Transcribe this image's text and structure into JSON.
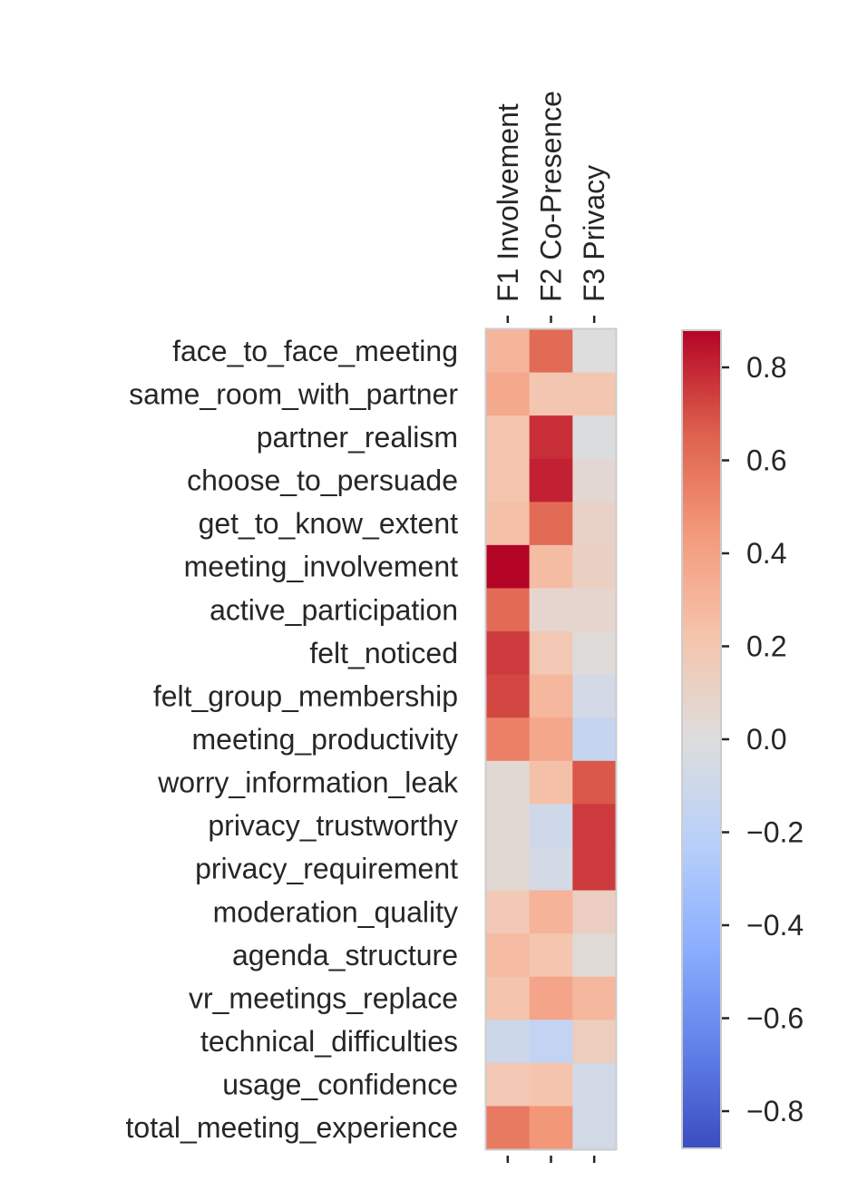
{
  "chart_data": {
    "type": "heatmap",
    "title": "",
    "columns": [
      "F1 Involvement",
      "F2 Co-Presence",
      "F3 Privacy"
    ],
    "rows": [
      "face_to_face_meeting",
      "same_room_with_partner",
      "partner_realism",
      "choose_to_persuade",
      "get_to_know_extent",
      "meeting_involvement",
      "active_participation",
      "felt_noticed",
      "felt_group_membership",
      "meeting_productivity",
      "worry_information_leak",
      "privacy_trustworthy",
      "privacy_requirement",
      "moderation_quality",
      "agenda_structure",
      "vr_meetings_replace",
      "technical_difficulties",
      "usage_confidence",
      "total_meeting_experience"
    ],
    "values": [
      [
        0.3,
        0.62,
        0.0
      ],
      [
        0.36,
        0.2,
        0.2
      ],
      [
        0.21,
        0.78,
        -0.01
      ],
      [
        0.21,
        0.81,
        0.05
      ],
      [
        0.24,
        0.62,
        0.1
      ],
      [
        0.88,
        0.26,
        0.12
      ],
      [
        0.62,
        0.07,
        0.07
      ],
      [
        0.75,
        0.19,
        0.02
      ],
      [
        0.72,
        0.29,
        -0.06
      ],
      [
        0.54,
        0.37,
        -0.14
      ],
      [
        0.04,
        0.24,
        0.68
      ],
      [
        0.04,
        -0.09,
        0.75
      ],
      [
        0.04,
        -0.06,
        0.75
      ],
      [
        0.18,
        0.31,
        0.13
      ],
      [
        0.27,
        0.21,
        0.03
      ],
      [
        0.22,
        0.38,
        0.29
      ],
      [
        -0.1,
        -0.16,
        0.14
      ],
      [
        0.19,
        0.22,
        -0.07
      ],
      [
        0.56,
        0.45,
        -0.07
      ]
    ],
    "colormap": "coolwarm",
    "vmin": -0.88,
    "vmax": 0.88,
    "colorbar_ticks": [
      {
        "value": 0.8,
        "label": "0.8"
      },
      {
        "value": 0.6,
        "label": "0.6"
      },
      {
        "value": 0.4,
        "label": "0.4"
      },
      {
        "value": 0.2,
        "label": "0.2"
      },
      {
        "value": 0.0,
        "label": "0.0"
      },
      {
        "value": -0.2,
        "label": "−0.2"
      },
      {
        "value": -0.4,
        "label": "−0.4"
      },
      {
        "value": -0.6,
        "label": "−0.6"
      },
      {
        "value": -0.8,
        "label": "−0.8"
      }
    ]
  }
}
